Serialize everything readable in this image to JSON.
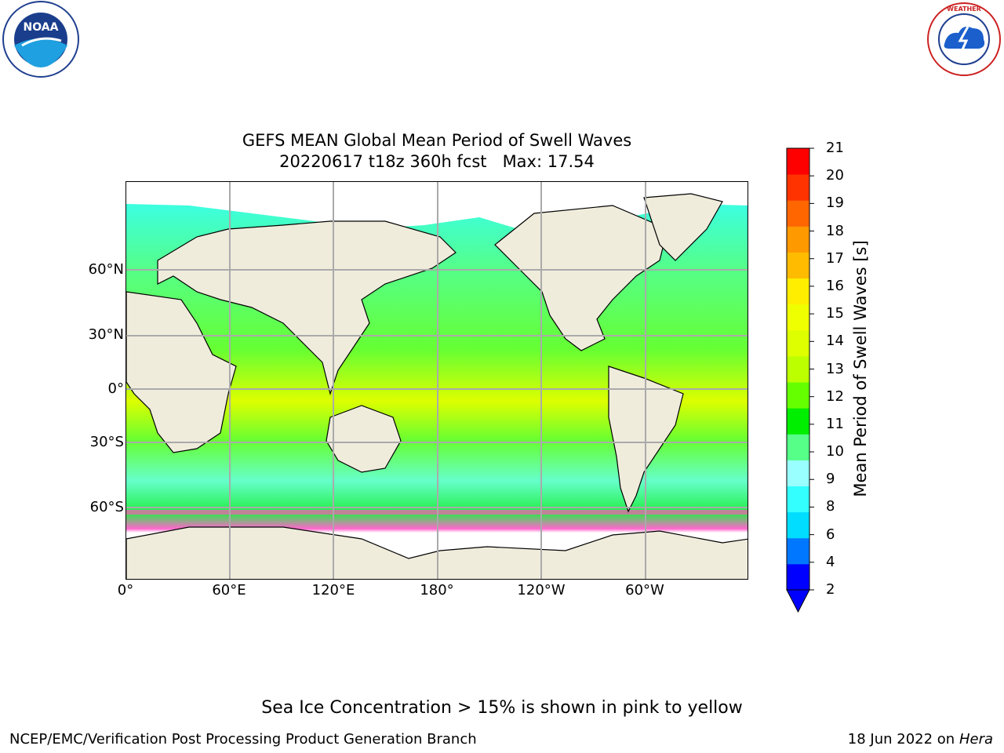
{
  "title": "GEFS MEAN Global Mean Period of Swell Waves",
  "subtitle": "20220617 t18z 360h fcst   Max: 17.54",
  "note": "Sea Ice Concentration > 15% is shown in pink to yellow",
  "footer": {
    "left": "NCEP/EMC/Verification Post Processing Product Generation Branch",
    "date": "18 Jun 2022 on",
    "machine": "Hera"
  },
  "logos": {
    "left": "NOAA",
    "right": "NATIONAL WEATHER SERVICE"
  },
  "map": {
    "lat_labels": [
      "60°N",
      "30°N",
      "0°",
      "30°S",
      "60°S"
    ],
    "lon_labels": [
      "0°",
      "60°E",
      "120°E",
      "180°",
      "120°W",
      "60°W"
    ],
    "land_color": "#efecdc",
    "ocean_color": "#44ee44",
    "ice_color": "#ffffff"
  },
  "colorbar": {
    "label": "Mean Period of Swell Waves [s]",
    "ticks": [
      "21",
      "20",
      "19",
      "18",
      "17",
      "16",
      "15",
      "14",
      "13",
      "12",
      "11",
      "10",
      "9",
      "8",
      "6",
      "4",
      "2"
    ],
    "colors": [
      "#0000ff",
      "#0077ff",
      "#00ddff",
      "#33ffff",
      "#99ffff",
      "#55ff88",
      "#00ee00",
      "#66ff00",
      "#bbff00",
      "#ddff00",
      "#f0ff00",
      "#ffee00",
      "#ffbb00",
      "#ff9900",
      "#ff6600",
      "#ff3300",
      "#ff0000"
    ]
  }
}
